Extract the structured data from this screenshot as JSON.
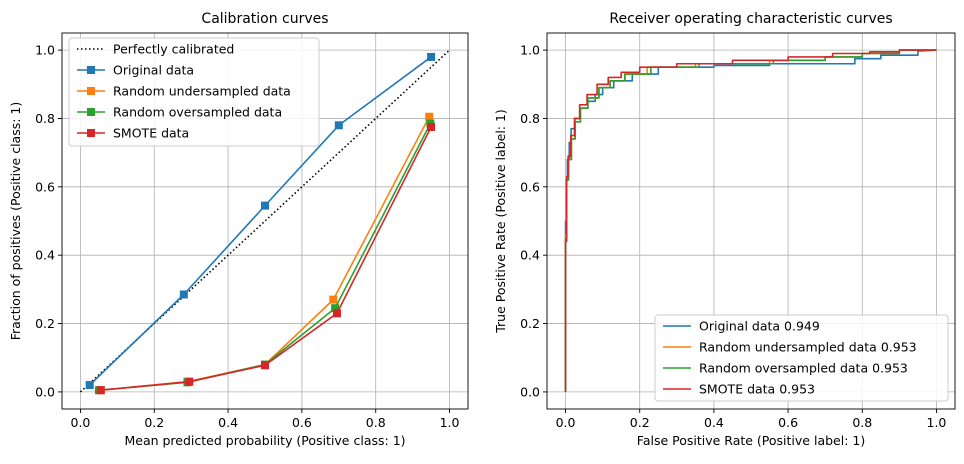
{
  "chart_data": [
    {
      "type": "line",
      "title": "Calibration curves",
      "xlabel": "Mean predicted probability (Positive class: 1)",
      "ylabel": "Fraction of positives (Positive class: 1)",
      "xlim": [
        -0.05,
        1.05
      ],
      "ylim": [
        -0.05,
        1.05
      ],
      "xticks": [
        "0.0",
        "0.2",
        "0.4",
        "0.6",
        "0.8",
        "1.0"
      ],
      "yticks": [
        "0.0",
        "0.2",
        "0.4",
        "0.6",
        "0.8",
        "1.0"
      ],
      "grid": true,
      "legend_position": "upper-left",
      "reference": {
        "name": "Perfectly calibrated",
        "x": [
          0,
          1
        ],
        "y": [
          0,
          1
        ],
        "color": "#000000",
        "style": "dotted"
      },
      "series": [
        {
          "name": "Original data",
          "color": "#1f77b4",
          "marker": "square",
          "x": [
            0.025,
            0.28,
            0.5,
            0.7,
            0.95
          ],
          "y": [
            0.02,
            0.285,
            0.545,
            0.78,
            0.98
          ]
        },
        {
          "name": "Random undersampled data",
          "color": "#ff7f0e",
          "marker": "square",
          "x": [
            0.055,
            0.29,
            0.5,
            0.685,
            0.945
          ],
          "y": [
            0.005,
            0.03,
            0.08,
            0.27,
            0.805
          ]
        },
        {
          "name": "Random oversampled data",
          "color": "#2ca02c",
          "marker": "square",
          "x": [
            0.05,
            0.29,
            0.5,
            0.69,
            0.948
          ],
          "y": [
            0.005,
            0.028,
            0.08,
            0.245,
            0.785
          ]
        },
        {
          "name": "SMOTE data",
          "color": "#d62728",
          "marker": "square",
          "x": [
            0.055,
            0.295,
            0.5,
            0.695,
            0.95
          ],
          "y": [
            0.005,
            0.03,
            0.078,
            0.23,
            0.775
          ]
        }
      ]
    },
    {
      "type": "line",
      "title": "Receiver operating characteristic curves",
      "xlabel": "False Positive Rate (Positive label: 1)",
      "ylabel": "True Positive Rate (Positive label: 1)",
      "xlim": [
        -0.05,
        1.05
      ],
      "ylim": [
        -0.05,
        1.05
      ],
      "xticks": [
        "0.0",
        "0.2",
        "0.4",
        "0.6",
        "0.8",
        "1.0"
      ],
      "yticks": [
        "0.0",
        "0.2",
        "0.4",
        "0.6",
        "0.8",
        "1.0"
      ],
      "grid": true,
      "legend_position": "lower-right",
      "series": [
        {
          "name": "Original data 0.949",
          "color": "#1f77b4",
          "x": [
            0,
            0,
            0.002,
            0.002,
            0.005,
            0.005,
            0.01,
            0.01,
            0.015,
            0.015,
            0.025,
            0.025,
            0.04,
            0.04,
            0.06,
            0.06,
            0.08,
            0.08,
            0.1,
            0.1,
            0.13,
            0.13,
            0.18,
            0.18,
            0.25,
            0.25,
            0.4,
            0.4,
            0.55,
            0.55,
            0.78,
            0.78,
            0.85,
            0.85,
            0.95,
            0.95,
            1.0
          ],
          "y": [
            0,
            0.5,
            0.5,
            0.62,
            0.62,
            0.68,
            0.68,
            0.73,
            0.73,
            0.77,
            0.77,
            0.8,
            0.8,
            0.83,
            0.83,
            0.85,
            0.85,
            0.87,
            0.87,
            0.89,
            0.89,
            0.91,
            0.91,
            0.93,
            0.93,
            0.95,
            0.95,
            0.955,
            0.955,
            0.96,
            0.96,
            0.975,
            0.975,
            0.985,
            0.985,
            0.997,
            1.0
          ]
        },
        {
          "name": "Random undersampled data 0.953",
          "color": "#ff7f0e",
          "x": [
            0,
            0,
            0.003,
            0.003,
            0.008,
            0.008,
            0.015,
            0.015,
            0.025,
            0.025,
            0.04,
            0.04,
            0.06,
            0.06,
            0.09,
            0.09,
            0.12,
            0.12,
            0.16,
            0.16,
            0.22,
            0.22,
            0.35,
            0.35,
            0.55,
            0.55,
            0.7,
            0.7,
            0.8,
            0.8,
            0.9,
            0.9,
            1.0
          ],
          "y": [
            0,
            0.46,
            0.46,
            0.62,
            0.62,
            0.68,
            0.68,
            0.74,
            0.74,
            0.79,
            0.79,
            0.83,
            0.83,
            0.86,
            0.86,
            0.89,
            0.89,
            0.91,
            0.91,
            0.93,
            0.93,
            0.95,
            0.95,
            0.96,
            0.96,
            0.97,
            0.97,
            0.98,
            0.98,
            0.99,
            0.99,
            1.0,
            1.0
          ]
        },
        {
          "name": "Random oversampled data 0.953",
          "color": "#2ca02c",
          "x": [
            0,
            0,
            0.003,
            0.003,
            0.008,
            0.008,
            0.016,
            0.016,
            0.026,
            0.026,
            0.04,
            0.04,
            0.06,
            0.06,
            0.09,
            0.09,
            0.12,
            0.12,
            0.16,
            0.16,
            0.23,
            0.23,
            0.36,
            0.36,
            0.56,
            0.56,
            0.7,
            0.7,
            0.8,
            0.8,
            0.9,
            0.9,
            1.0
          ],
          "y": [
            0,
            0.45,
            0.45,
            0.62,
            0.62,
            0.68,
            0.68,
            0.74,
            0.74,
            0.79,
            0.79,
            0.83,
            0.83,
            0.86,
            0.86,
            0.89,
            0.89,
            0.91,
            0.91,
            0.93,
            0.93,
            0.95,
            0.95,
            0.96,
            0.96,
            0.97,
            0.97,
            0.98,
            0.98,
            0.99,
            0.99,
            1.0,
            1.0
          ]
        },
        {
          "name": "SMOTE data 0.953",
          "color": "#d62728",
          "x": [
            0,
            0,
            0.003,
            0.003,
            0.007,
            0.007,
            0.014,
            0.014,
            0.024,
            0.024,
            0.038,
            0.038,
            0.058,
            0.058,
            0.085,
            0.085,
            0.115,
            0.115,
            0.15,
            0.15,
            0.2,
            0.2,
            0.3,
            0.3,
            0.45,
            0.45,
            0.6,
            0.6,
            0.72,
            0.72,
            0.82,
            0.82,
            0.9,
            0.9,
            1.0
          ],
          "y": [
            0,
            0.44,
            0.44,
            0.63,
            0.63,
            0.69,
            0.69,
            0.75,
            0.75,
            0.8,
            0.8,
            0.84,
            0.84,
            0.87,
            0.87,
            0.9,
            0.9,
            0.92,
            0.92,
            0.935,
            0.935,
            0.95,
            0.95,
            0.96,
            0.96,
            0.97,
            0.97,
            0.98,
            0.98,
            0.99,
            0.99,
            0.995,
            0.995,
            1.0,
            1.0
          ]
        }
      ]
    }
  ]
}
